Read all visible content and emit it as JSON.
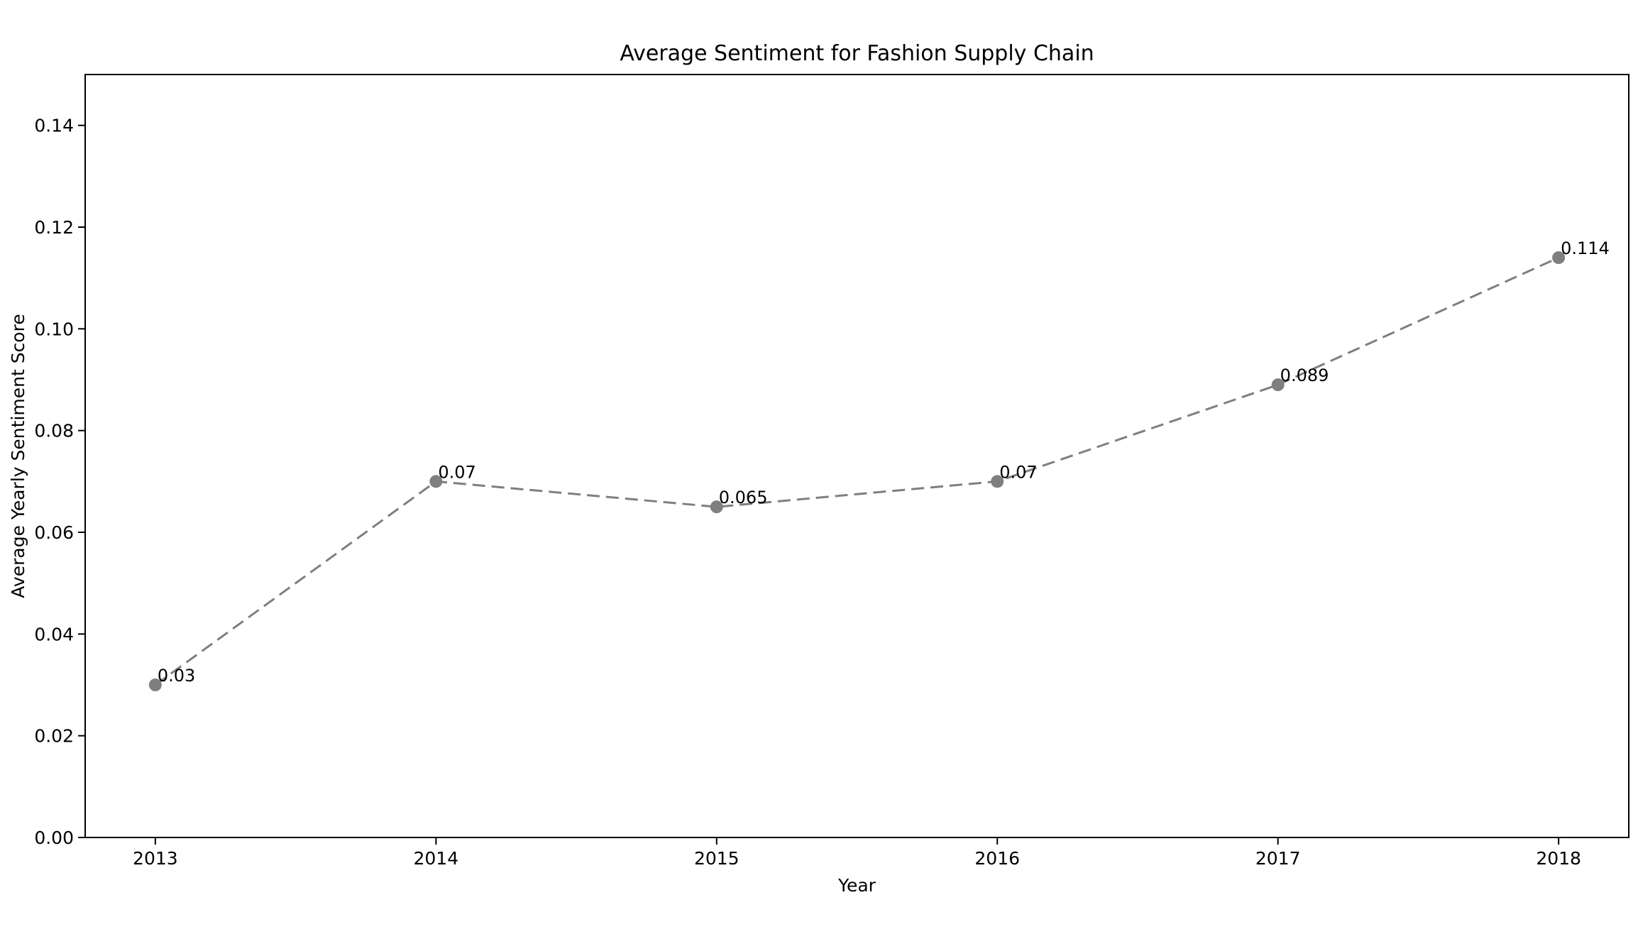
{
  "figure": {
    "background": "#ffffff"
  },
  "chart_data": {
    "type": "line",
    "title": "Average Sentiment for Fashion Supply Chain",
    "xlabel": "Year",
    "ylabel": "Average Yearly Sentiment Score",
    "x": [
      2013,
      2014,
      2015,
      2016,
      2017,
      2018
    ],
    "x_tick_labels": [
      "2013",
      "2014",
      "2015",
      "2016",
      "2017",
      "2018"
    ],
    "series": [
      {
        "name": "Average Yearly Sentiment Score",
        "values": [
          0.03,
          0.07,
          0.065,
          0.07,
          0.089,
          0.114
        ],
        "point_labels": [
          "0.03",
          "0.07",
          "0.065",
          "0.07",
          "0.089",
          "0.114"
        ],
        "line_color": "#7f7f7f",
        "marker_color": "#7f7f7f",
        "line_style": "dashed",
        "marker": "circle"
      }
    ],
    "yticks": {
      "values": [
        0.0,
        0.02,
        0.04,
        0.06,
        0.08,
        0.1,
        0.12,
        0.14
      ],
      "labels": [
        "0.00",
        "0.02",
        "0.04",
        "0.06",
        "0.08",
        "0.10",
        "0.12",
        "0.14"
      ]
    },
    "ylim": [
      0,
      0.15
    ],
    "xlim": [
      2012.75,
      2018.25
    ],
    "grid": false,
    "legend": null,
    "text_color": "#000000",
    "spine_color": "#000000"
  }
}
